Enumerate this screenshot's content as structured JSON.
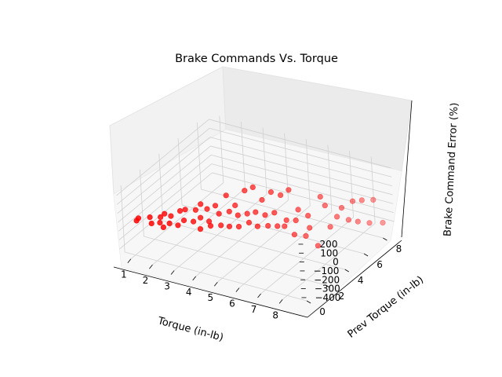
{
  "chart_data": {
    "type": "scatter",
    "projection": "3d",
    "title": "Brake Commands Vs. Torque",
    "xlabel": "Torque (in-lb)",
    "ylabel": "Prev Torque (in-lb)",
    "zlabel": "Brake Command Error  (%)",
    "x_ticks": [
      "1",
      "2",
      "3",
      "4",
      "5",
      "6",
      "7",
      "8"
    ],
    "y_ticks": [
      "0",
      "2",
      "4",
      "6",
      "8"
    ],
    "z_ticks": [
      "200",
      "100",
      "0",
      "−100",
      "−200",
      "−300",
      "−400"
    ],
    "xlim": [
      0.5,
      8.9
    ],
    "ylim": [
      -0.5,
      9.2
    ],
    "zlim": [
      -480,
      270
    ],
    "grid": true,
    "marker_color": "#ff0000",
    "points": [
      {
        "x": 1.0,
        "y": 0.3,
        "z": -120
      },
      {
        "x": 1.0,
        "y": 0.5,
        "z": -110
      },
      {
        "x": 1.4,
        "y": 0.8,
        "z": -100
      },
      {
        "x": 1.6,
        "y": 0.5,
        "z": -130
      },
      {
        "x": 1.8,
        "y": 1.0,
        "z": -90
      },
      {
        "x": 1.9,
        "y": 0.7,
        "z": -120
      },
      {
        "x": 2.0,
        "y": 1.0,
        "z": -40
      },
      {
        "x": 2.1,
        "y": 0.6,
        "z": -150
      },
      {
        "x": 2.2,
        "y": 1.2,
        "z": -70
      },
      {
        "x": 2.3,
        "y": 0.8,
        "z": -110
      },
      {
        "x": 2.5,
        "y": 1.5,
        "z": -20
      },
      {
        "x": 2.6,
        "y": 1.0,
        "z": -130
      },
      {
        "x": 2.7,
        "y": 1.6,
        "z": 0
      },
      {
        "x": 2.8,
        "y": 1.2,
        "z": -80
      },
      {
        "x": 3.0,
        "y": 2.0,
        "z": -20
      },
      {
        "x": 3.1,
        "y": 1.5,
        "z": -100
      },
      {
        "x": 3.2,
        "y": 2.1,
        "z": 50
      },
      {
        "x": 3.3,
        "y": 1.8,
        "z": -70
      },
      {
        "x": 3.4,
        "y": 2.3,
        "z": -10
      },
      {
        "x": 3.5,
        "y": 1.3,
        "z": -140
      },
      {
        "x": 3.6,
        "y": 2.0,
        "z": -110
      },
      {
        "x": 3.7,
        "y": 2.5,
        "z": 30
      },
      {
        "x": 3.8,
        "y": 1.7,
        "z": -120
      },
      {
        "x": 3.9,
        "y": 2.4,
        "z": -40
      },
      {
        "x": 4.0,
        "y": 3.0,
        "z": 120
      },
      {
        "x": 4.1,
        "y": 2.1,
        "z": -130
      },
      {
        "x": 4.2,
        "y": 2.8,
        "z": -30
      },
      {
        "x": 4.3,
        "y": 3.2,
        "z": 10
      },
      {
        "x": 4.4,
        "y": 2.3,
        "z": -140
      },
      {
        "x": 4.5,
        "y": 3.0,
        "z": -70
      },
      {
        "x": 4.6,
        "y": 3.6,
        "z": 160
      },
      {
        "x": 4.7,
        "y": 2.6,
        "z": -150
      },
      {
        "x": 4.8,
        "y": 3.3,
        "z": -60
      },
      {
        "x": 4.9,
        "y": 3.8,
        "z": 200
      },
      {
        "x": 5.0,
        "y": 3.0,
        "z": -120
      },
      {
        "x": 5.1,
        "y": 3.5,
        "z": -40
      },
      {
        "x": 5.2,
        "y": 4.0,
        "z": 60
      },
      {
        "x": 5.3,
        "y": 3.2,
        "z": -160
      },
      {
        "x": 5.4,
        "y": 3.8,
        "z": -80
      },
      {
        "x": 5.5,
        "y": 4.3,
        "z": 140
      },
      {
        "x": 5.6,
        "y": 3.6,
        "z": -170
      },
      {
        "x": 5.7,
        "y": 4.1,
        "z": -60
      },
      {
        "x": 5.8,
        "y": 4.6,
        "z": 100
      },
      {
        "x": 5.9,
        "y": 3.9,
        "z": -180
      },
      {
        "x": 6.0,
        "y": 4.4,
        "z": -220
      },
      {
        "x": 6.1,
        "y": 4.8,
        "z": 160
      },
      {
        "x": 6.2,
        "y": 4.2,
        "z": -120
      },
      {
        "x": 6.3,
        "y": 4.7,
        "z": -320
      },
      {
        "x": 6.4,
        "y": 5.0,
        "z": -60
      },
      {
        "x": 6.5,
        "y": 4.5,
        "z": -130
      },
      {
        "x": 6.6,
        "y": 5.2,
        "z": -360
      },
      {
        "x": 6.7,
        "y": 5.4,
        "z": -280
      },
      {
        "x": 6.8,
        "y": 5.1,
        "z": -110
      },
      {
        "x": 7.0,
        "y": 5.5,
        "z": -470
      },
      {
        "x": 7.1,
        "y": 5.8,
        "z": 60
      },
      {
        "x": 7.2,
        "y": 6.0,
        "z": -50
      },
      {
        "x": 7.3,
        "y": 6.2,
        "z": -300
      },
      {
        "x": 7.5,
        "y": 6.5,
        "z": -200
      },
      {
        "x": 7.6,
        "y": 6.8,
        "z": -120
      },
      {
        "x": 7.8,
        "y": 7.0,
        "z": -260
      },
      {
        "x": 7.9,
        "y": 7.3,
        "z": -70
      },
      {
        "x": 8.0,
        "y": 7.5,
        "z": -310
      },
      {
        "x": 8.1,
        "y": 7.8,
        "z": -90
      },
      {
        "x": 8.3,
        "y": 8.0,
        "z": -350
      },
      {
        "x": 8.4,
        "y": 8.3,
        "z": -110
      },
      {
        "x": 8.6,
        "y": 8.7,
        "z": -390
      }
    ]
  }
}
